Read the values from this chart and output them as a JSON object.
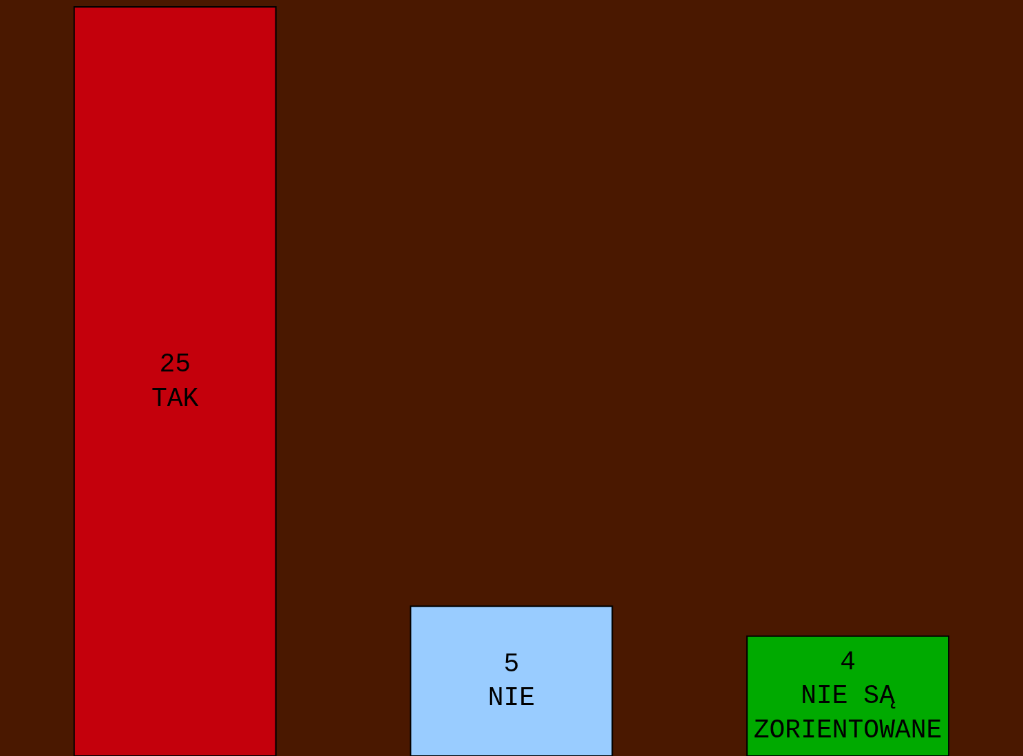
{
  "chart_data": {
    "type": "bar",
    "categories": [
      "TAK",
      "NIE",
      "NIE SĄ ZORIENTOWANE"
    ],
    "values": [
      25,
      5,
      4
    ],
    "colors": [
      "#c4000c",
      "#99ccff",
      "#00aa00"
    ],
    "data_labels": true,
    "tick_labels": false
  }
}
